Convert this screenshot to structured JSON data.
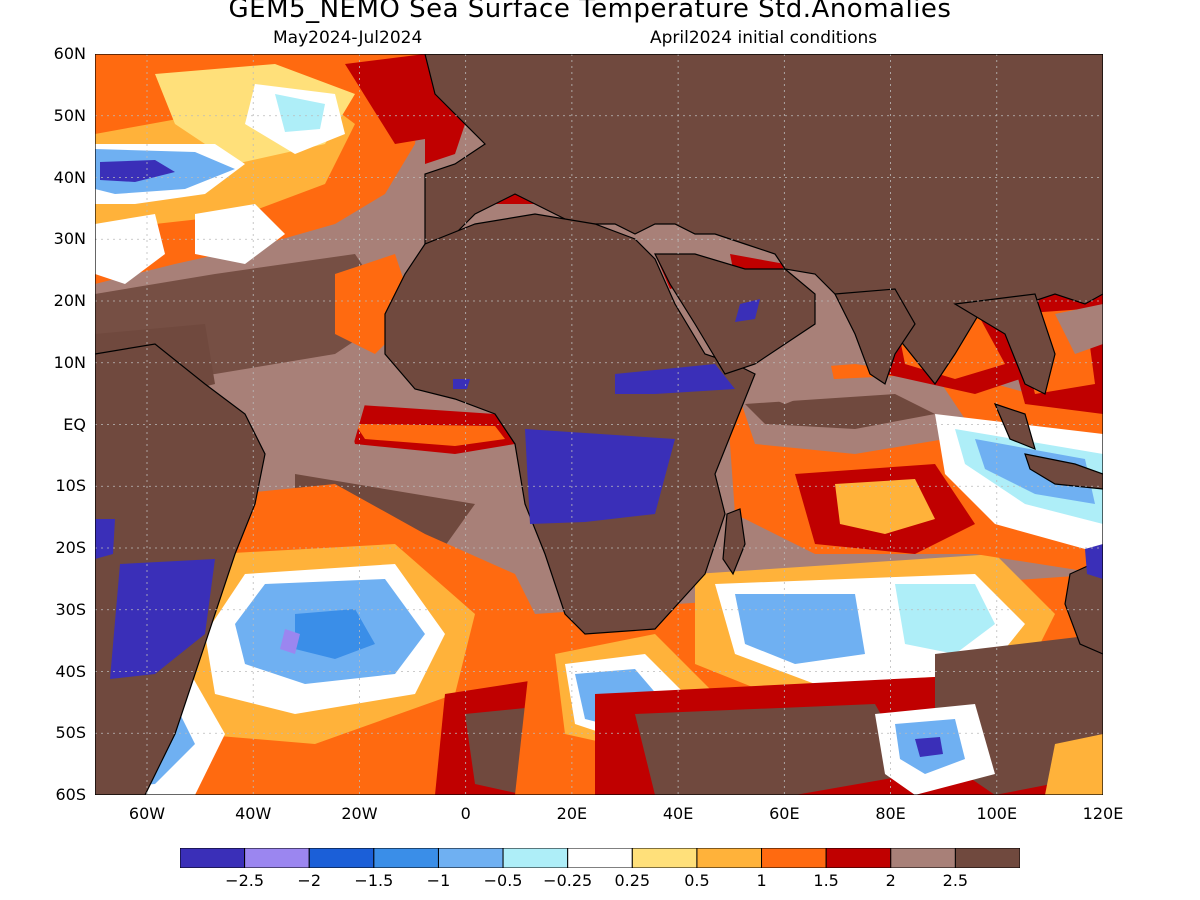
{
  "title": "GEM5_NEMO Sea Surface Temperature Std.Anomalies",
  "period": "May2024-Jul2024",
  "init": "April2024 initial conditions",
  "lat_labels": [
    "60N",
    "50N",
    "40N",
    "30N",
    "20N",
    "10N",
    "EQ",
    "10S",
    "20S",
    "30S",
    "40S",
    "50S",
    "60S"
  ],
  "lon_labels": [
    "60W",
    "40W",
    "20W",
    "0",
    "20E",
    "40E",
    "60E",
    "80E",
    "100E",
    "120E"
  ],
  "colorbar": {
    "colors": [
      "#3a2fb8",
      "#9b86f0",
      "#1b5fd8",
      "#3a8ee8",
      "#6fb0f2",
      "#aeeef8",
      "#ffffff",
      "#ffe07a",
      "#ffb23a",
      "#ff6a10",
      "#c00000",
      "#a88078",
      "#70493e"
    ],
    "labels": [
      "-2.5",
      "-2",
      "-1.5",
      "-1",
      "-0.5",
      "-0.25",
      "0.25",
      "0.5",
      "1",
      "1.5",
      "2",
      "2.5"
    ]
  },
  "colors": {
    "land": "#70493e",
    "grid": "#bbbbbb"
  }
}
